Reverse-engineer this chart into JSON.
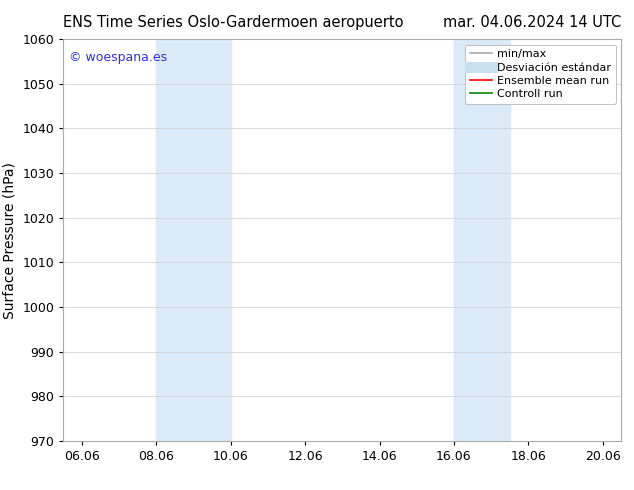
{
  "title_left": "ENS Time Series Oslo-Gardermoen aeropuerto",
  "title_right": "mar. 04.06.2024 14 UTC",
  "ylabel": "Surface Pressure (hPa)",
  "ylim": [
    970,
    1060
  ],
  "yticks": [
    970,
    980,
    990,
    1000,
    1010,
    1020,
    1030,
    1040,
    1050,
    1060
  ],
  "xlim_start": 5.5,
  "xlim_end": 20.5,
  "xtick_labels": [
    "06.06",
    "08.06",
    "10.06",
    "12.06",
    "14.06",
    "16.06",
    "18.06",
    "20.06"
  ],
  "xtick_positions": [
    6.0,
    8.0,
    10.0,
    12.0,
    14.0,
    16.0,
    18.0,
    20.0
  ],
  "shade_bands": [
    {
      "x_start": 8.0,
      "x_end": 10.0
    },
    {
      "x_start": 16.0,
      "x_end": 17.5
    }
  ],
  "shade_color": "#daeaf8",
  "watermark_text": "© woespana.es",
  "watermark_color": "#3333cc",
  "legend_labels": [
    "min/max",
    "Desviación estándar",
    "Ensemble mean run",
    "Controll run"
  ],
  "legend_colors": [
    "#aaaaaa",
    "#c8dff0",
    "#ff0000",
    "#008800"
  ],
  "legend_lws": [
    1.2,
    8,
    1.2,
    1.2
  ],
  "bg_color": "#ffffff",
  "title_fontsize": 10.5,
  "ylabel_fontsize": 10,
  "tick_fontsize": 9,
  "legend_fontsize": 8
}
